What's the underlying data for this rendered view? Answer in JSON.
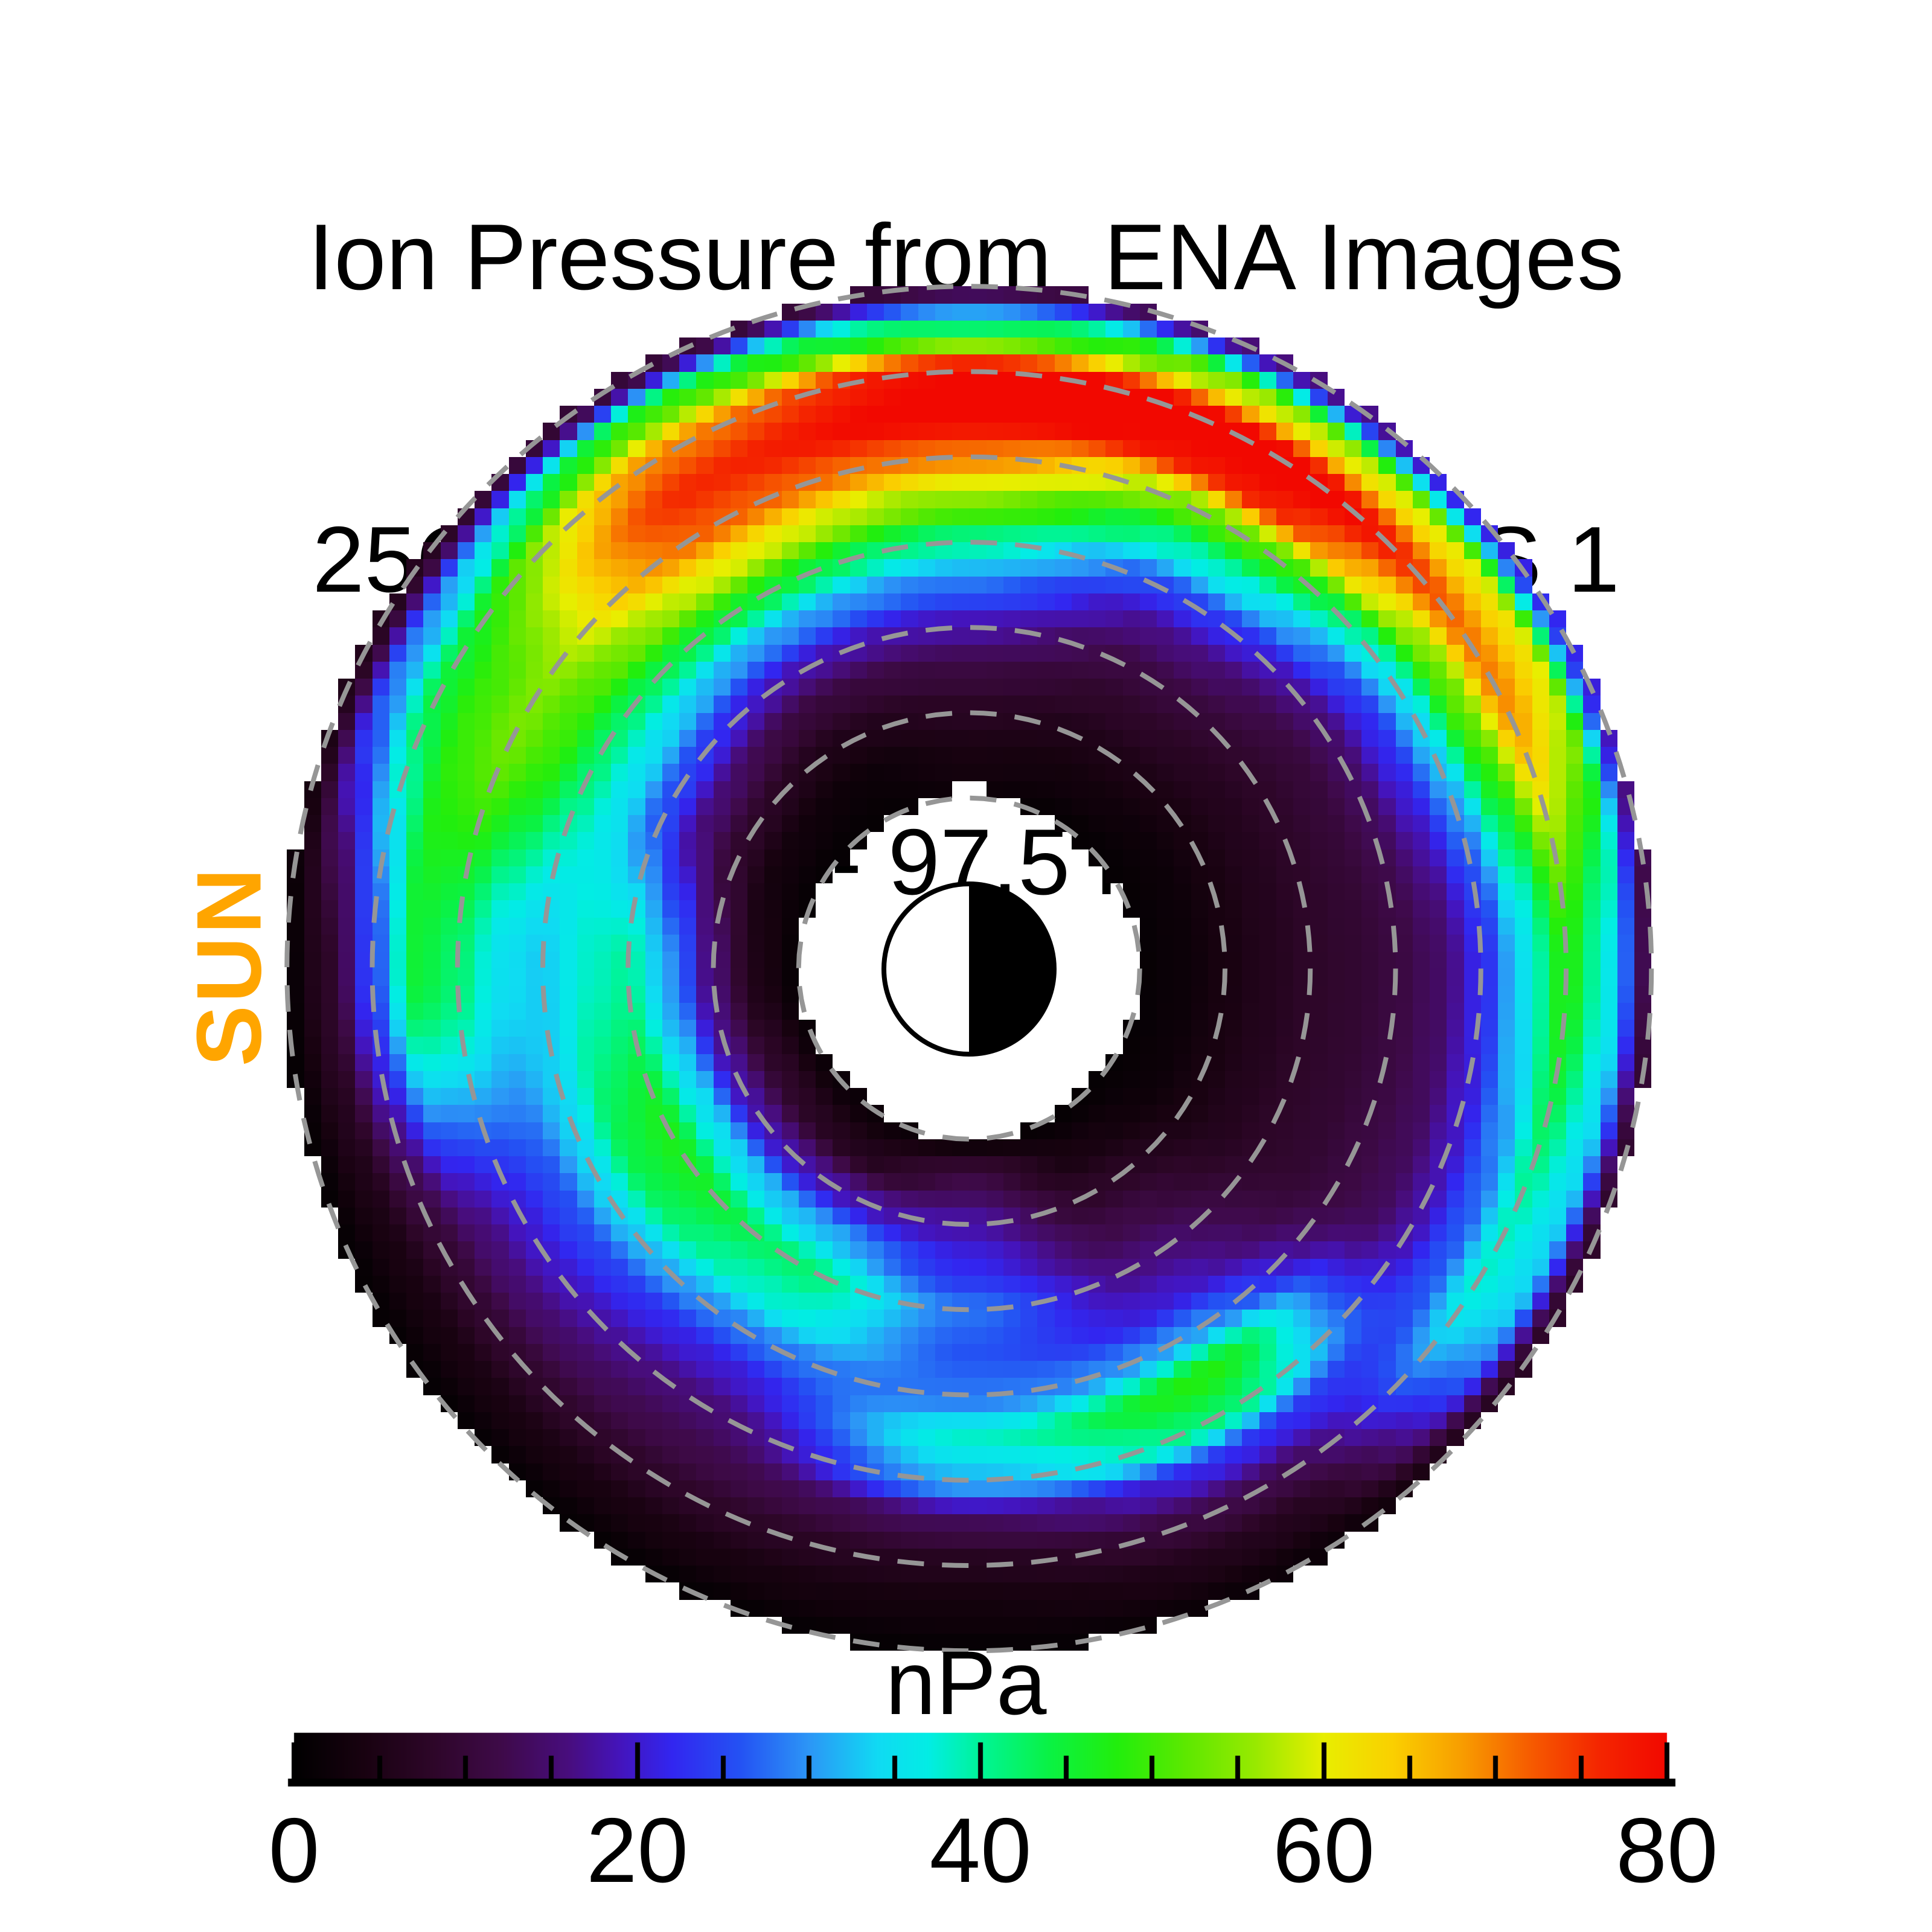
{
  "title": {
    "line1": "Ion Pressure from  ENA Images",
    "line2": "25Oct2011, 0508 UT,  TWINS 1",
    "line3": "2.5 - 97.5 keV"
  },
  "sun_label": "SUN",
  "colorbar": {
    "unit_label": "nPa",
    "min": 0,
    "max": 80,
    "tick_labels": [
      "0",
      "20",
      "40",
      "60",
      "80"
    ],
    "tick_values": [
      0,
      20,
      40,
      60,
      80
    ],
    "minor_tick_step": 5
  },
  "colors": {
    "background": "#ffffff",
    "text": "#000000",
    "sun_label": "#ffa500",
    "dashed_grid": "#969696",
    "earth_dayside": "#ffffff",
    "earth_nightside": "#000000"
  },
  "chart_data": {
    "type": "heatmap",
    "title": "Ion Pressure from ENA Images",
    "observation": "25Oct2011, 0508 UT, TWINS 1",
    "energy_range": "2.5 - 97.5 keV",
    "units": "nPa",
    "value_range": [
      0,
      80
    ],
    "sun_direction": "left",
    "outer_radius_re": 8,
    "inner_hole_radius_re": 1.97,
    "grid_rings_re": [
      2,
      3,
      4,
      5,
      6,
      7,
      8
    ],
    "earth_symbol": "half white / half black circle at origin",
    "sunward_notch": {
      "angle_deg_cw_from_top": 0,
      "half_angle_deg": 8,
      "apex_radius_re": 2.45
    },
    "polar_grid": {
      "radii_re": [
        2,
        2.5,
        3,
        3.5,
        4,
        4.5,
        5,
        5.5,
        6,
        6.5,
        7,
        7.5,
        8
      ],
      "azimuths_deg_cw_from_top": [
        0,
        30,
        60,
        90,
        120,
        150,
        180,
        210,
        240,
        270,
        300,
        330
      ],
      "pressure_npa": [
        [
          2,
          4,
          7,
          11,
          18,
          28,
          40,
          55,
          70,
          82,
          80,
          42,
          10
        ],
        [
          1,
          3,
          5,
          8,
          11,
          16,
          24,
          38,
          52,
          78,
          84,
          58,
          16
        ],
        [
          1,
          2,
          4,
          6,
          8,
          10,
          14,
          22,
          34,
          52,
          70,
          62,
          22
        ],
        [
          1,
          2,
          4,
          6,
          8,
          9,
          11,
          14,
          22,
          35,
          48,
          36,
          10
        ],
        [
          1,
          2,
          4,
          6,
          8,
          9,
          11,
          13,
          18,
          26,
          38,
          34,
          8
        ],
        [
          1,
          4,
          8,
          12,
          16,
          20,
          30,
          48,
          42,
          22,
          12,
          6,
          2
        ],
        [
          2,
          12,
          18,
          22,
          28,
          26,
          28,
          38,
          32,
          13,
          6,
          3,
          1
        ],
        [
          2,
          6,
          18,
          32,
          42,
          38,
          28,
          20,
          15,
          12,
          8,
          4,
          1
        ],
        [
          2,
          8,
          18,
          35,
          47,
          44,
          34,
          25,
          20,
          15,
          9,
          4,
          1
        ],
        [
          1,
          5,
          15,
          30,
          40,
          38,
          33,
          35,
          42,
          45,
          25,
          8,
          1
        ],
        [
          1,
          3,
          8,
          15,
          25,
          35,
          42,
          50,
          54,
          50,
          45,
          30,
          6
        ],
        [
          1,
          2,
          5,
          10,
          18,
          30,
          45,
          60,
          72,
          76,
          70,
          50,
          10
        ]
      ]
    },
    "colormap_stops_value_rgb": [
      [
        0,
        0,
        0,
        0
      ],
      [
        4,
        24,
        2,
        16
      ],
      [
        8,
        45,
        6,
        40
      ],
      [
        12,
        62,
        10,
        72
      ],
      [
        16,
        72,
        13,
        126
      ],
      [
        19,
        68,
        20,
        188
      ],
      [
        22,
        50,
        38,
        240
      ],
      [
        26,
        36,
        82,
        243
      ],
      [
        30,
        44,
        150,
        246
      ],
      [
        34,
        16,
        218,
        243
      ],
      [
        37,
        2,
        237,
        228
      ],
      [
        40,
        0,
        244,
        152
      ],
      [
        44,
        10,
        242,
        68
      ],
      [
        48,
        34,
        238,
        12
      ],
      [
        52,
        94,
        232,
        0
      ],
      [
        56,
        152,
        233,
        0
      ],
      [
        60,
        232,
        238,
        0
      ],
      [
        64,
        250,
        208,
        0
      ],
      [
        68,
        248,
        158,
        0
      ],
      [
        72,
        246,
        92,
        0
      ],
      [
        76,
        244,
        38,
        0
      ],
      [
        80,
        242,
        8,
        0
      ]
    ]
  }
}
